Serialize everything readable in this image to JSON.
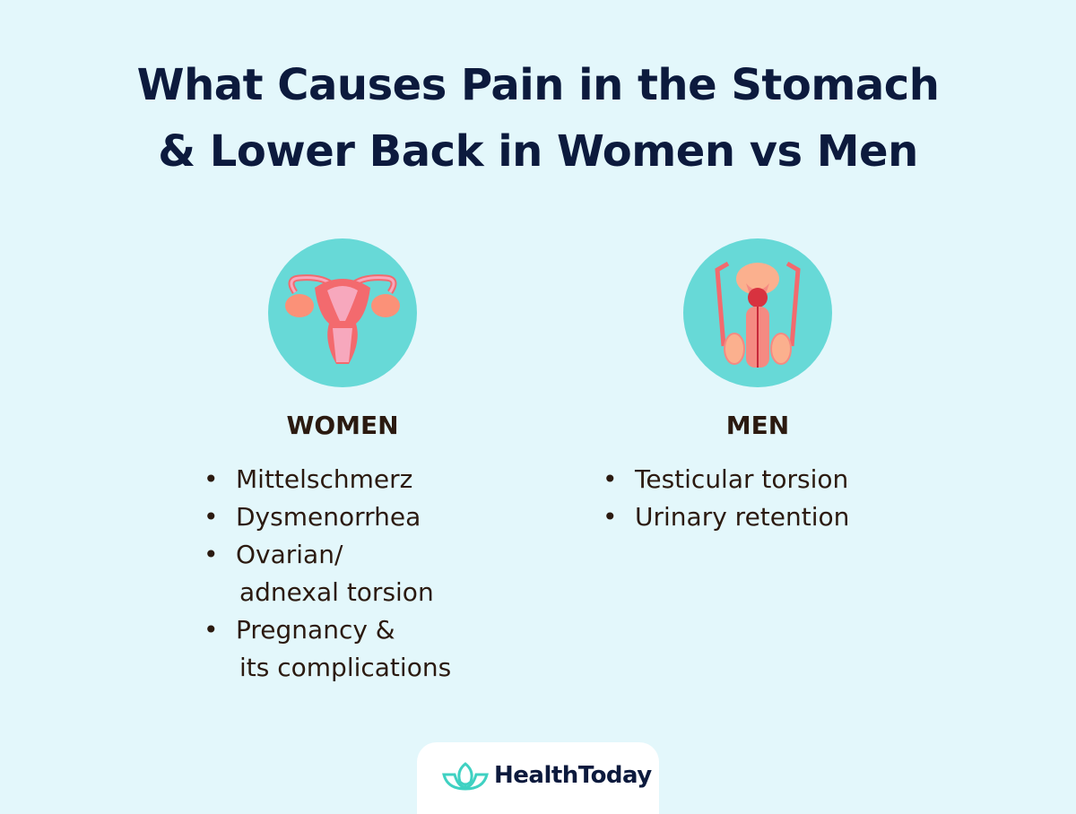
{
  "title": {
    "line1": "What Causes Pain in the Stomach",
    "line2": "& Lower Back in Women vs Men"
  },
  "women": {
    "heading": "WOMEN",
    "icon": "uterus-icon",
    "items": [
      {
        "text": "Mittelschmerz"
      },
      {
        "text": "Dysmenorrhea"
      },
      {
        "text": "Ovarian/",
        "cont": "adnexal torsion"
      },
      {
        "text": "Pregnancy &",
        "cont": "its complications"
      }
    ]
  },
  "men": {
    "heading": "MEN",
    "icon": "male-reproductive-icon",
    "items": [
      {
        "text": "Testicular torsion"
      },
      {
        "text": "Urinary retention"
      }
    ]
  },
  "logo": {
    "text": "HealthToday",
    "icon": "lotus-icon"
  },
  "colors": {
    "background": "#e3f7fb",
    "circle": "#67d9d7",
    "title": "#0c1a3d",
    "organ": "#f36a6e",
    "logo_icon": "#3fd1c2"
  }
}
